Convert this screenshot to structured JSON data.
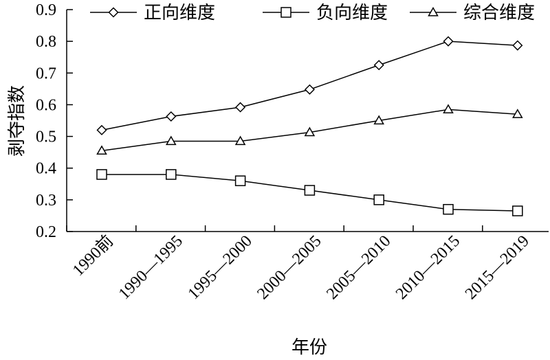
{
  "chart_data": {
    "type": "line",
    "title": "",
    "xlabel": "年份",
    "ylabel": "剥夺指数",
    "categories": [
      "1990前",
      "1990—1995",
      "1995—2000",
      "2000—2005",
      "2005—2010",
      "2010—2015",
      "2015—2019"
    ],
    "ylim": [
      0.2,
      0.9
    ],
    "yticks": [
      "0.2",
      "0.3",
      "0.4",
      "0.5",
      "0.6",
      "0.7",
      "0.8",
      "0.9"
    ],
    "grid": false,
    "legend_position": "top",
    "series": [
      {
        "name": "正向维度",
        "marker": "diamond",
        "values": [
          0.52,
          0.563,
          0.592,
          0.648,
          0.725,
          0.8,
          0.787
        ]
      },
      {
        "name": "负向维度",
        "marker": "square",
        "values": [
          0.38,
          0.38,
          0.36,
          0.33,
          0.3,
          0.27,
          0.265
        ]
      },
      {
        "name": "综合维度",
        "marker": "triangle",
        "values": [
          0.455,
          0.485,
          0.485,
          0.513,
          0.55,
          0.585,
          0.57
        ]
      }
    ]
  }
}
